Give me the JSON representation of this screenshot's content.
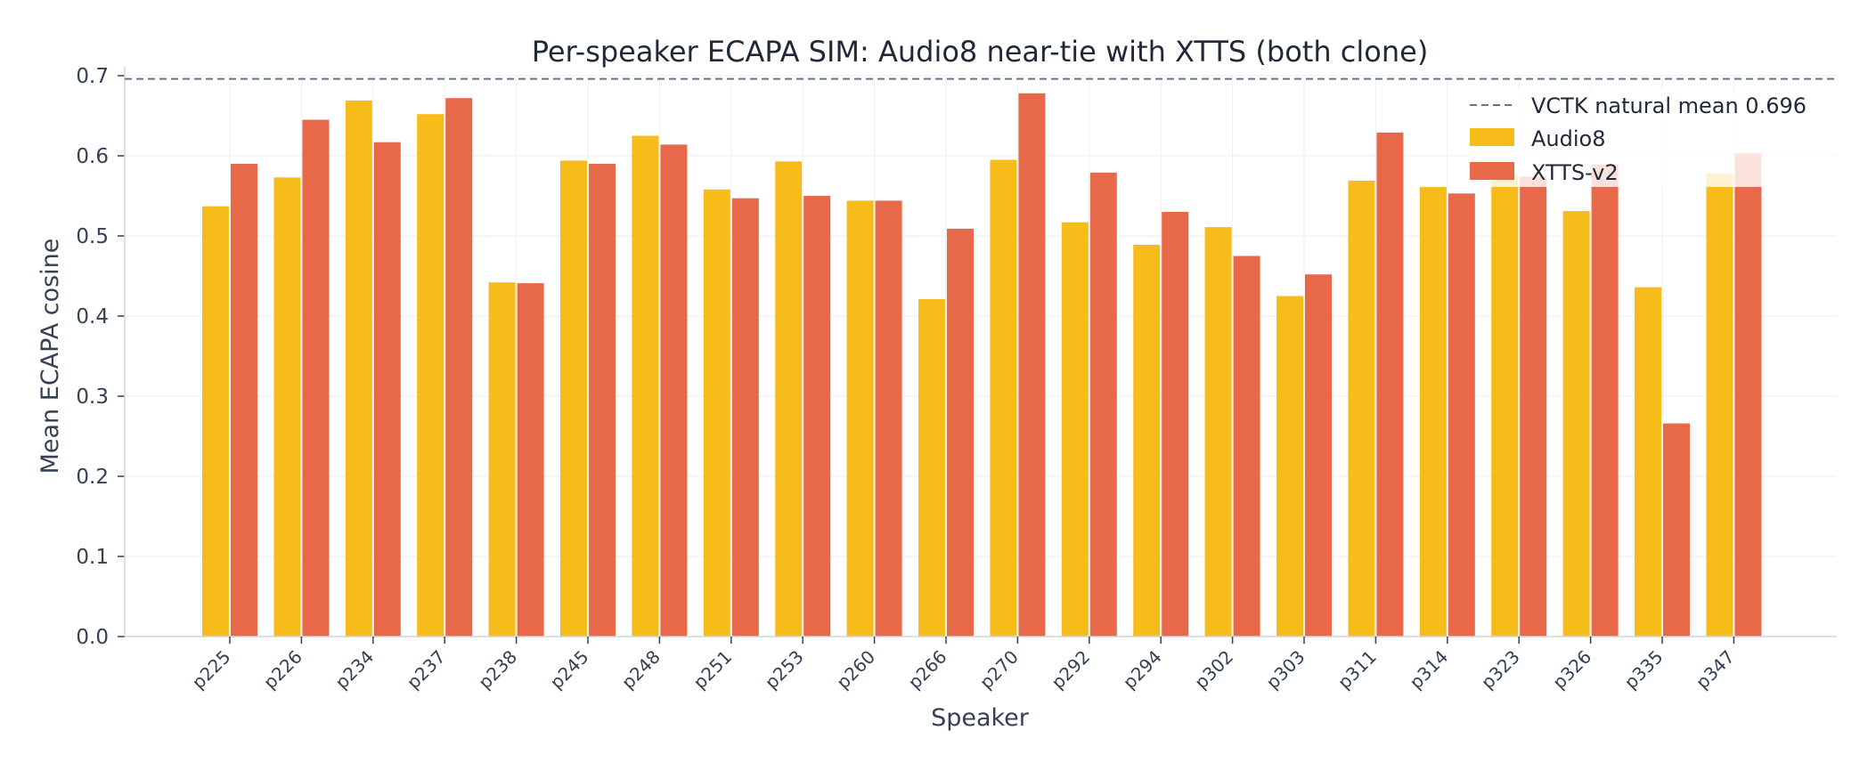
{
  "chart_data": {
    "type": "bar",
    "title": "Per-speaker ECAPA SIM: Audio8 near-tie with XTTS (both clone)",
    "xlabel": "Speaker",
    "ylabel": "Mean ECAPA cosine",
    "ylim": [
      0,
      0.7
    ],
    "yticks": [
      "0.0",
      "0.1",
      "0.2",
      "0.3",
      "0.4",
      "0.5",
      "0.6",
      "0.7"
    ],
    "grid": true,
    "legend_position": "top-right",
    "categories": [
      "p225",
      "p226",
      "p234",
      "p237",
      "p238",
      "p245",
      "p248",
      "p251",
      "p253",
      "p260",
      "p266",
      "p270",
      "p292",
      "p294",
      "p302",
      "p303",
      "p311",
      "p314",
      "p323",
      "p326",
      "p335",
      "p347"
    ],
    "series": [
      {
        "name": "Audio8",
        "color": "#f5bc1a",
        "values": [
          0.537,
          0.573,
          0.669,
          0.652,
          0.442,
          0.594,
          0.625,
          0.558,
          0.593,
          0.544,
          0.421,
          0.595,
          0.517,
          0.489,
          0.511,
          0.425,
          0.569,
          0.561,
          0.578,
          0.531,
          0.436,
          0.578
        ]
      },
      {
        "name": "XTTS-v2",
        "color": "#e8694a",
        "values": [
          0.59,
          0.645,
          0.617,
          0.672,
          0.441,
          0.59,
          0.614,
          0.547,
          0.55,
          0.544,
          0.509,
          0.678,
          0.579,
          0.53,
          0.475,
          0.452,
          0.629,
          0.553,
          0.574,
          0.589,
          0.266,
          0.603
        ]
      }
    ],
    "reference_line": {
      "label": "VCTK natural mean 0.696",
      "value": 0.696,
      "color": "#64748b",
      "style": "dashed"
    }
  }
}
